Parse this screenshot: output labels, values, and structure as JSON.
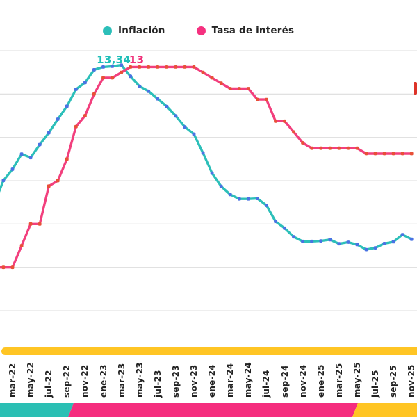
{
  "legend": {
    "items": [
      {
        "label": "Inflación",
        "color": "#2CBFB9"
      },
      {
        "label": "Tasa de interés",
        "color": "#F5317F"
      }
    ]
  },
  "chart_data": {
    "type": "line",
    "title": "",
    "xlabel": "",
    "ylabel": "",
    "y_axis_labels_visible": false,
    "ylim": [
      2,
      14
    ],
    "y_gridlines": [
      2,
      4,
      6,
      8,
      10,
      12,
      14
    ],
    "grid": "horizontal",
    "legend_position": "top",
    "x": [
      "ene-22",
      "feb-22",
      "mar-22",
      "abr-22",
      "may-22",
      "jun-22",
      "jul-22",
      "ago-22",
      "sep-22",
      "oct-22",
      "nov-22",
      "dic-22",
      "ene-23",
      "feb-23",
      "mar-23",
      "abr-23",
      "may-23",
      "jun-23",
      "jul-23",
      "ago-23",
      "sep-23",
      "oct-23",
      "nov-23",
      "dic-23",
      "ene-24",
      "feb-24",
      "mar-24",
      "abr-24",
      "may-24",
      "jun-24",
      "jul-24",
      "ago-24",
      "sep-24",
      "oct-24",
      "nov-24",
      "dic-24",
      "ene-25",
      "feb-25",
      "mar-25",
      "abr-25",
      "may-25",
      "jun-25",
      "jul-25",
      "ago-25",
      "sep-25",
      "oct-25",
      "nov-25"
    ],
    "x_tick_labels": [
      "mar-22",
      "may-22",
      "jul-22",
      "sep-22",
      "nov-22",
      "ene-23",
      "mar-23",
      "may-23",
      "jul-23",
      "sep-23",
      "nov-23",
      "ene-24",
      "mar-24",
      "may-24",
      "jul-24",
      "sep-24",
      "nov-24",
      "ene-25",
      "mar-25",
      "may-25",
      "jul-25",
      "sep-25",
      "nov-25"
    ],
    "series": [
      {
        "name": "Inflación",
        "color": "#2CBFB9",
        "marker_color": "#4A73E3",
        "values": [
          6.94,
          8.01,
          8.53,
          9.23,
          9.07,
          9.67,
          10.21,
          10.84,
          11.44,
          12.22,
          12.53,
          13.12,
          13.25,
          13.28,
          13.34,
          12.82,
          12.36,
          12.13,
          11.78,
          11.43,
          10.99,
          10.48,
          10.15,
          9.28,
          8.35,
          7.74,
          7.36,
          7.16,
          7.16,
          7.18,
          6.86,
          6.12,
          5.81,
          5.41,
          5.2,
          5.2,
          5.22,
          5.28,
          5.09,
          5.16,
          5.05,
          4.82,
          4.9,
          5.1,
          5.18,
          5.51,
          5.3
        ]
      },
      {
        "name": "Tasa de interés",
        "color": "#F23F7D",
        "marker_color": "#E85038",
        "values": [
          4.0,
          4.0,
          4.0,
          5.0,
          6.0,
          6.0,
          7.75,
          8.0,
          9.0,
          10.5,
          11.0,
          12.0,
          12.75,
          12.75,
          13.0,
          13.25,
          13.25,
          13.25,
          13.25,
          13.25,
          13.25,
          13.25,
          13.25,
          13.0,
          12.75,
          12.5,
          12.25,
          12.25,
          12.25,
          11.75,
          11.75,
          10.75,
          10.75,
          10.25,
          9.75,
          9.5,
          9.5,
          9.5,
          9.5,
          9.5,
          9.5,
          9.25,
          9.25,
          9.25,
          9.25,
          9.25,
          9.25
        ]
      }
    ],
    "annotations": [
      {
        "text": "13,34",
        "series": "Inflación",
        "at": "mar-23",
        "color": "#1FBFB8"
      },
      {
        "text": "13",
        "series": "Tasa de interés",
        "at": "abr-23",
        "color": "#F0327A"
      }
    ]
  },
  "decor": {
    "axis_bar_color": "#FFC524",
    "footer_bands": [
      {
        "name": "teal",
        "color": "#2BBFB4"
      },
      {
        "name": "pink",
        "color": "#F52D7E"
      },
      {
        "name": "yellow",
        "color": "#FFC524"
      }
    ],
    "edge_mark_color": "#DD3328",
    "gridline_color": "#DDDDDD"
  }
}
